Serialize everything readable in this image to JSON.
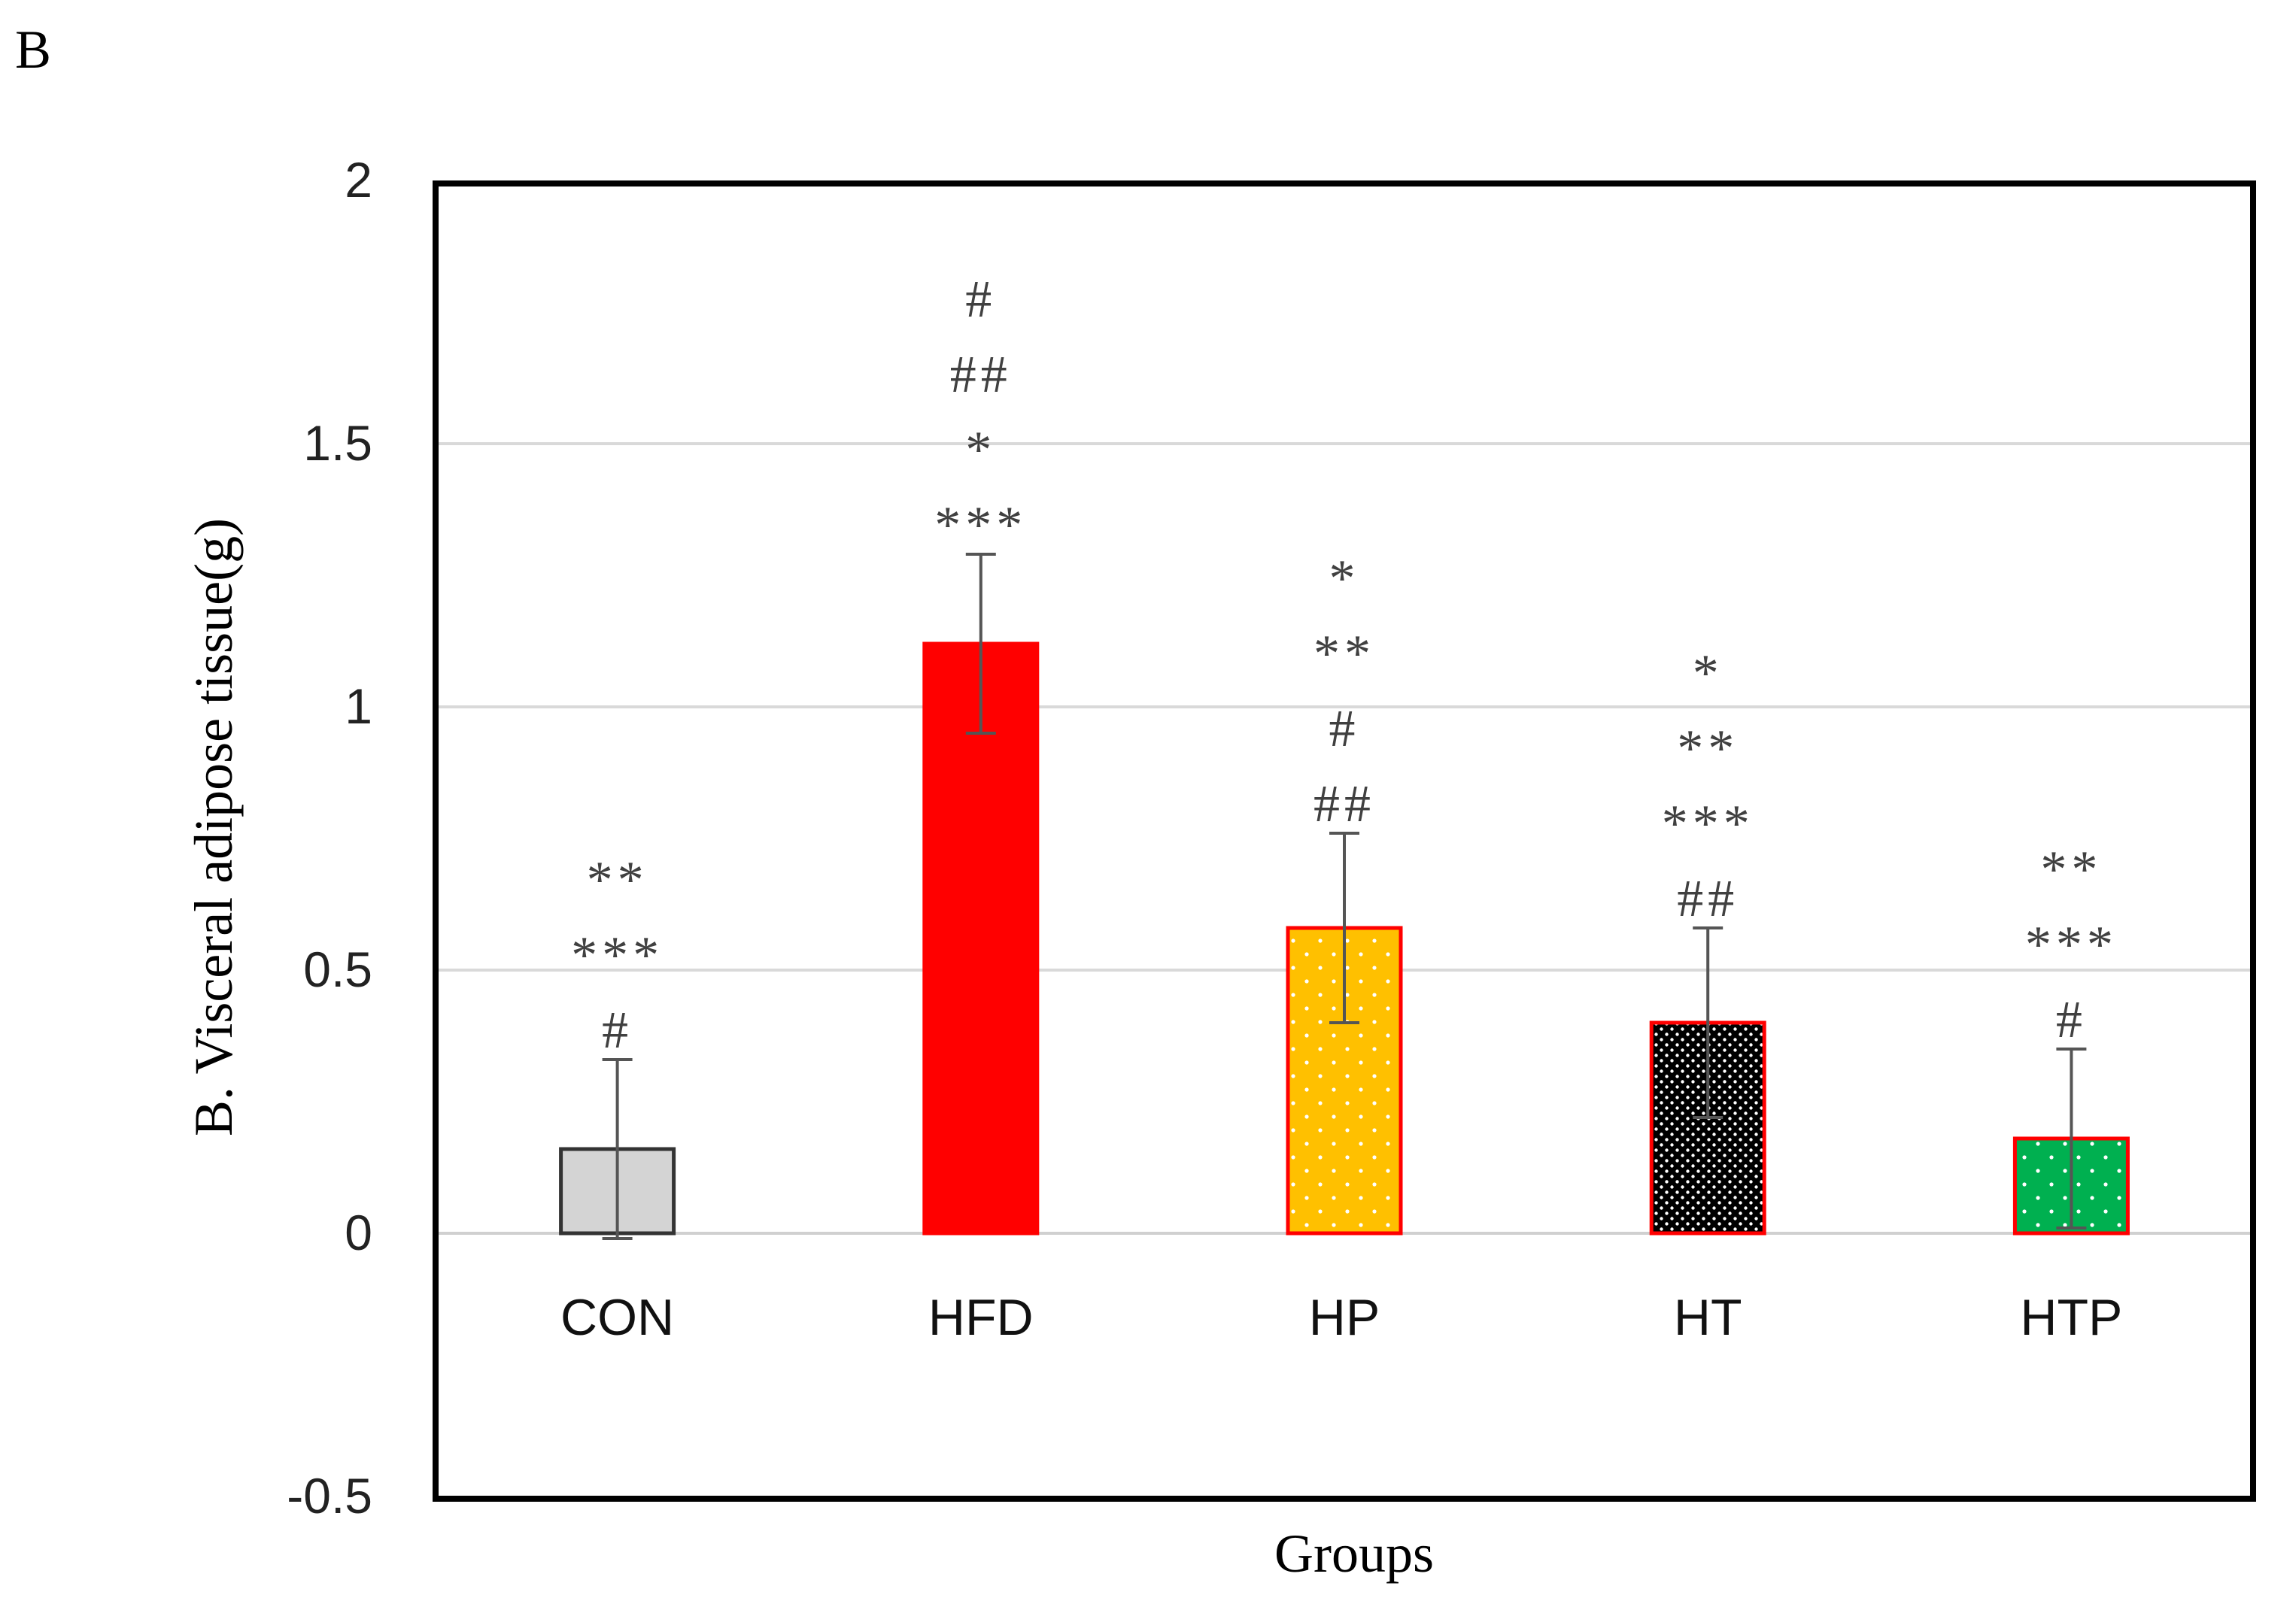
{
  "panel_label": "B",
  "chart_data": {
    "type": "bar",
    "title": "",
    "xlabel": "Groups",
    "ylabel": "B. Visceral adipose tissue(g)",
    "ylim": [
      -0.5,
      2
    ],
    "yticks": [
      -0.5,
      0,
      0.5,
      1,
      1.5,
      2
    ],
    "ytick_labels": [
      "-0.5",
      "0",
      "0.5",
      "1",
      "1.5",
      "2"
    ],
    "grid": true,
    "categories": [
      "CON",
      "HFD",
      "HP",
      "HT",
      "HTP"
    ],
    "values": [
      0.16,
      1.12,
      0.58,
      0.4,
      0.18
    ],
    "errors": [
      0.17,
      0.17,
      0.18,
      0.18,
      0.17
    ],
    "colors": [
      "#d4d4d4",
      "#ff0000",
      "#ffc000",
      "#000000",
      "#00b050"
    ],
    "edge_colors": [
      "#333333",
      "#ff0000",
      "#ff0000",
      "#ff0000",
      "#ff0000"
    ],
    "patterns": [
      "none",
      "none",
      "dots",
      "checker",
      "dots"
    ],
    "annotations": [
      [
        "**",
        "***",
        "#"
      ],
      [
        "#",
        "##",
        "*",
        "***"
      ],
      [
        "*",
        "**",
        "#",
        "##"
      ],
      [
        "*",
        "**",
        "***",
        "##"
      ],
      [
        "**",
        "***",
        "#"
      ]
    ]
  }
}
